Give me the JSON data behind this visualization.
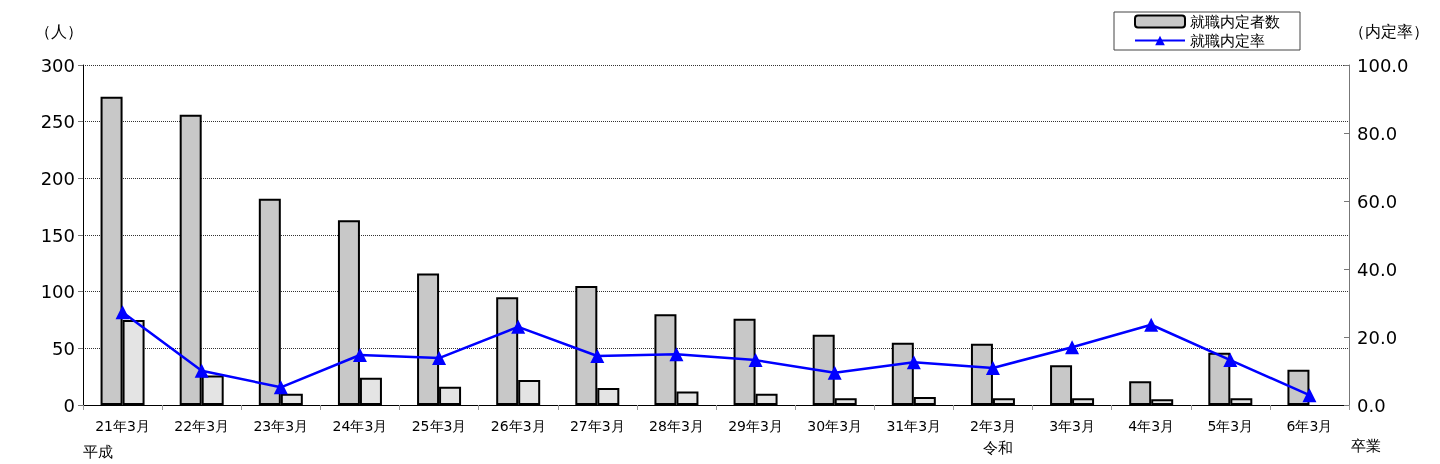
{
  "chart_data": {
    "type": "bar",
    "categories": [
      "21年3月",
      "22年3月",
      "23年3月",
      "24年3月",
      "25年3月",
      "26年3月",
      "27年3月",
      "28年3月",
      "29年3月",
      "30年3月",
      "31年3月",
      "2年3月",
      "3年3月",
      "4年3月",
      "5年3月",
      "6年3月"
    ],
    "series": [
      {
        "name": "就職内定者数",
        "color": "#c8c8c8",
        "values": [
          272,
          256,
          182,
          163,
          116,
          95,
          105,
          80,
          76,
          62,
          55,
          54,
          35,
          21,
          46,
          31
        ]
      },
      {
        "color": "#e4e4e4",
        "values": [
          75,
          26,
          10,
          24,
          16,
          22,
          15,
          12,
          10,
          6,
          7,
          6,
          6,
          5,
          6,
          null
        ]
      },
      {
        "name": "就職内定率",
        "type": "line",
        "axis": "y2",
        "color": "#0000ff",
        "marker": "triangle",
        "values": [
          27.3,
          10.1,
          5.2,
          14.7,
          13.8,
          23.0,
          14.4,
          14.9,
          13.2,
          9.5,
          12.6,
          10.9,
          17.0,
          23.6,
          13.2,
          2.9
        ]
      }
    ],
    "ylabel": "（人）",
    "y2label": "（内定率）",
    "ylim": [
      0,
      300
    ],
    "yticks": [
      0,
      50,
      100,
      150,
      200,
      250,
      300
    ],
    "y2lim": [
      0,
      100
    ],
    "y2ticks": [
      {
        "value": 0,
        "label": "0.0"
      },
      {
        "value": 20,
        "label": "20.0"
      },
      {
        "value": 40,
        "label": "40.0"
      },
      {
        "value": 60,
        "label": "60.0"
      },
      {
        "value": 80,
        "label": "80.0"
      },
      {
        "value": 100,
        "label": "100.0"
      }
    ],
    "annotations": [
      "平成",
      "令和",
      "卒業"
    ],
    "grid": "y",
    "legend": "top right"
  }
}
